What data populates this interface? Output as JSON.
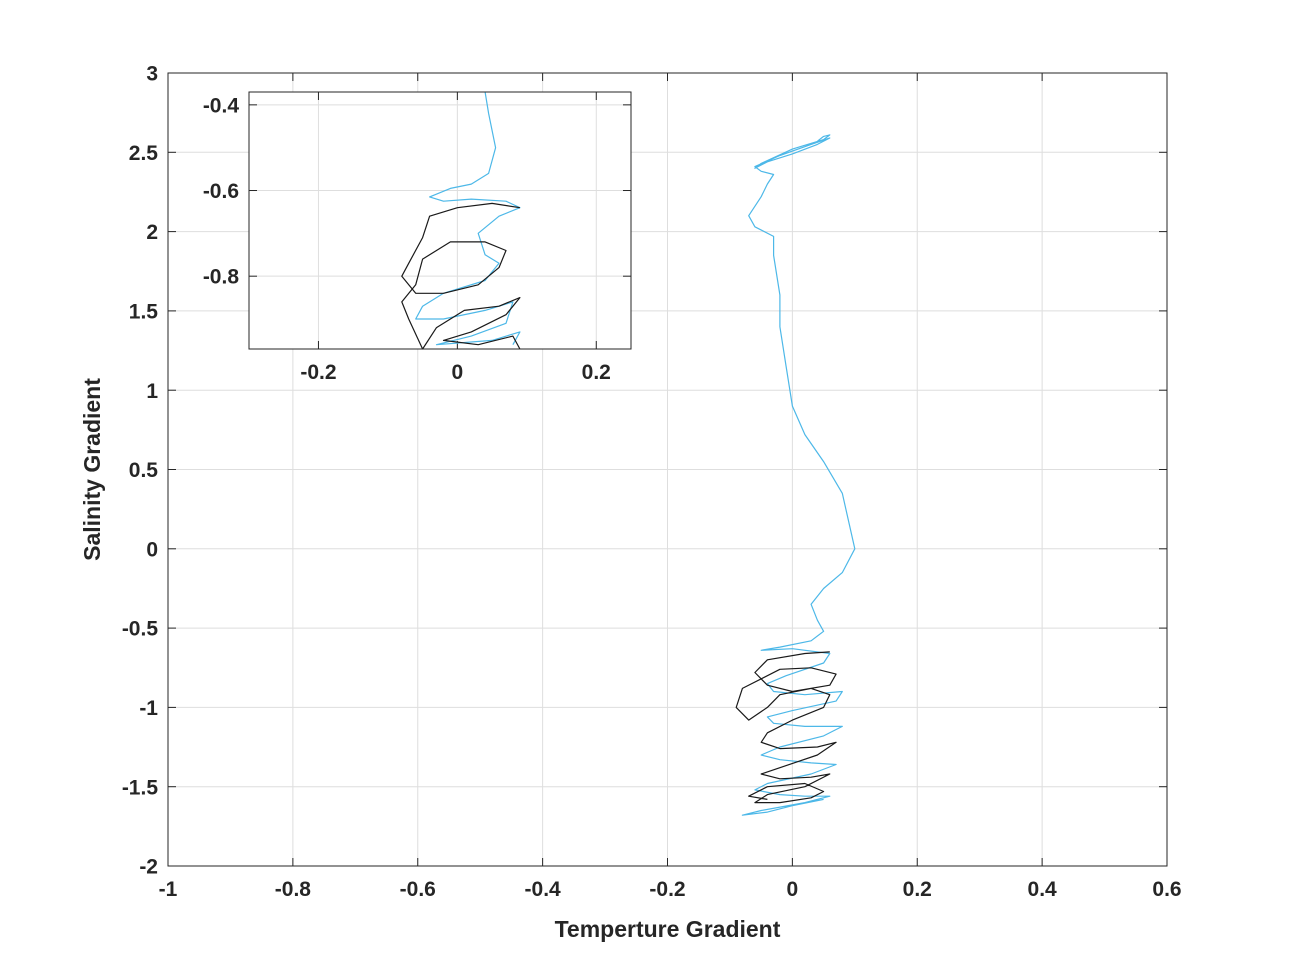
{
  "chart_data": [
    {
      "type": "line",
      "title": "",
      "xlabel": "Temperture Gradient",
      "ylabel": "Salinity Gradient",
      "xlim": [
        -1,
        0.6
      ],
      "ylim": [
        -2,
        3
      ],
      "grid": true,
      "x_ticks": [
        "-1",
        "-0.8",
        "-0.6",
        "-0.4",
        "-0.2",
        "0",
        "0.2",
        "0.4",
        "0.6"
      ],
      "y_ticks": [
        "-2",
        "-1.5",
        "-1",
        "-0.5",
        "0",
        "0.5",
        "1",
        "1.5",
        "2",
        "2.5",
        "3"
      ],
      "series": [
        {
          "color": "#4db8e8",
          "description": "trajectory descending from upper loop",
          "points": [
            [
              0.04,
              2.57
            ],
            [
              0.05,
              2.6
            ],
            [
              0.06,
              2.61
            ],
            [
              0.05,
              2.58
            ],
            [
              0.0,
              2.52
            ],
            [
              -0.05,
              2.43
            ],
            [
              -0.06,
              2.4
            ],
            [
              -0.04,
              2.44
            ],
            [
              0.0,
              2.49
            ],
            [
              0.04,
              2.55
            ],
            [
              0.06,
              2.59
            ],
            [
              0.03,
              2.55
            ],
            [
              -0.02,
              2.48
            ],
            [
              -0.06,
              2.41
            ],
            [
              -0.05,
              2.38
            ],
            [
              -0.03,
              2.36
            ],
            [
              -0.04,
              2.3
            ],
            [
              -0.05,
              2.22
            ],
            [
              -0.07,
              2.1
            ],
            [
              -0.06,
              2.03
            ],
            [
              -0.03,
              1.97
            ],
            [
              -0.03,
              1.85
            ],
            [
              -0.02,
              1.6
            ],
            [
              -0.02,
              1.4
            ],
            [
              -0.01,
              1.15
            ],
            [
              0.0,
              0.9
            ],
            [
              0.02,
              0.72
            ],
            [
              0.05,
              0.55
            ],
            [
              0.08,
              0.35
            ],
            [
              0.1,
              0.0
            ],
            [
              0.08,
              -0.15
            ],
            [
              0.05,
              -0.25
            ],
            [
              0.03,
              -0.35
            ],
            [
              0.04,
              -0.45
            ],
            [
              0.05,
              -0.52
            ],
            [
              0.03,
              -0.58
            ],
            [
              -0.02,
              -0.62
            ],
            [
              -0.05,
              -0.64
            ],
            [
              0.0,
              -0.63
            ],
            [
              0.06,
              -0.66
            ],
            [
              0.05,
              -0.72
            ],
            [
              -0.01,
              -0.8
            ],
            [
              -0.04,
              -0.85
            ],
            [
              -0.03,
              -0.9
            ],
            [
              0.02,
              -0.92
            ],
            [
              0.08,
              -0.9
            ],
            [
              0.07,
              -0.96
            ],
            [
              0.0,
              -1.02
            ],
            [
              -0.04,
              -1.06
            ],
            [
              -0.03,
              -1.1
            ],
            [
              0.02,
              -1.12
            ],
            [
              0.08,
              -1.12
            ],
            [
              0.05,
              -1.18
            ],
            [
              -0.02,
              -1.25
            ],
            [
              -0.05,
              -1.3
            ],
            [
              -0.02,
              -1.33
            ],
            [
              0.03,
              -1.35
            ],
            [
              0.07,
              -1.36
            ],
            [
              0.03,
              -1.42
            ],
            [
              -0.04,
              -1.48
            ],
            [
              -0.06,
              -1.52
            ],
            [
              -0.02,
              -1.55
            ],
            [
              0.02,
              -1.56
            ],
            [
              0.06,
              -1.56
            ],
            [
              0.02,
              -1.6
            ],
            [
              -0.05,
              -1.65
            ],
            [
              -0.08,
              -1.68
            ],
            [
              -0.04,
              -1.66
            ],
            [
              0.0,
              -1.62
            ],
            [
              0.05,
              -1.58
            ]
          ]
        },
        {
          "color": "#1a1a1a",
          "description": "black trajectory loops",
          "points": [
            [
              0.06,
              -0.65
            ],
            [
              0.02,
              -0.66
            ],
            [
              -0.04,
              -0.7
            ],
            [
              -0.06,
              -0.78
            ],
            [
              -0.04,
              -0.86
            ],
            [
              0.0,
              -0.9
            ],
            [
              0.06,
              -0.86
            ],
            [
              0.07,
              -0.79
            ],
            [
              0.03,
              -0.75
            ],
            [
              -0.02,
              -0.76
            ],
            [
              -0.08,
              -0.88
            ],
            [
              -0.09,
              -1.0
            ],
            [
              -0.07,
              -1.08
            ],
            [
              -0.04,
              -1.0
            ],
            [
              -0.02,
              -0.92
            ],
            [
              0.03,
              -0.88
            ],
            [
              0.06,
              -0.92
            ],
            [
              0.05,
              -1.0
            ],
            [
              0.0,
              -1.08
            ],
            [
              -0.04,
              -1.16
            ],
            [
              -0.05,
              -1.22
            ],
            [
              -0.02,
              -1.26
            ],
            [
              0.04,
              -1.25
            ],
            [
              0.07,
              -1.22
            ],
            [
              0.04,
              -1.3
            ],
            [
              -0.02,
              -1.38
            ],
            [
              -0.05,
              -1.42
            ],
            [
              -0.02,
              -1.45
            ],
            [
              0.03,
              -1.44
            ],
            [
              0.06,
              -1.42
            ],
            [
              0.02,
              -1.5
            ],
            [
              -0.04,
              -1.55
            ],
            [
              -0.06,
              -1.6
            ],
            [
              -0.02,
              -1.6
            ],
            [
              0.03,
              -1.57
            ],
            [
              0.05,
              -1.53
            ],
            [
              0.02,
              -1.48
            ],
            [
              -0.04,
              -1.5
            ],
            [
              -0.07,
              -1.56
            ],
            [
              -0.04,
              -1.58
            ]
          ]
        }
      ]
    },
    {
      "type": "line",
      "title": "",
      "description": "inset zoom",
      "xlabel": "",
      "ylabel": "",
      "xlim": [
        -0.3,
        0.25
      ],
      "ylim": [
        -0.97,
        -0.37
      ],
      "grid": true,
      "x_ticks": [
        "-0.2",
        "0",
        "0.2"
      ],
      "y_ticks": [
        "-0.8",
        "-0.6",
        "-0.4"
      ],
      "series": [
        {
          "color": "#4db8e8",
          "points": [
            [
              0.04,
              -0.37
            ],
            [
              0.045,
              -0.42
            ],
            [
              0.055,
              -0.5
            ],
            [
              0.045,
              -0.56
            ],
            [
              0.02,
              -0.585
            ],
            [
              -0.01,
              -0.595
            ],
            [
              -0.04,
              -0.615
            ],
            [
              -0.02,
              -0.625
            ],
            [
              0.02,
              -0.62
            ],
            [
              0.07,
              -0.625
            ],
            [
              0.09,
              -0.64
            ],
            [
              0.06,
              -0.66
            ],
            [
              0.03,
              -0.7
            ],
            [
              0.04,
              -0.75
            ],
            [
              0.06,
              -0.77
            ],
            [
              0.04,
              -0.81
            ],
            [
              -0.02,
              -0.84
            ],
            [
              -0.05,
              -0.87
            ],
            [
              -0.06,
              -0.9
            ],
            [
              -0.02,
              -0.9
            ],
            [
              0.04,
              -0.88
            ],
            [
              0.08,
              -0.86
            ],
            [
              0.07,
              -0.91
            ],
            [
              0.02,
              -0.94
            ],
            [
              -0.03,
              -0.96
            ],
            [
              0.05,
              -0.95
            ],
            [
              0.09,
              -0.93
            ],
            [
              0.08,
              -0.96
            ]
          ]
        },
        {
          "color": "#1a1a1a",
          "points": [
            [
              0.09,
              -0.64
            ],
            [
              0.05,
              -0.63
            ],
            [
              0.0,
              -0.64
            ],
            [
              -0.04,
              -0.66
            ],
            [
              -0.05,
              -0.71
            ],
            [
              -0.07,
              -0.77
            ],
            [
              -0.08,
              -0.8
            ],
            [
              -0.06,
              -0.84
            ],
            [
              -0.02,
              -0.84
            ],
            [
              0.03,
              -0.82
            ],
            [
              0.06,
              -0.78
            ],
            [
              0.07,
              -0.74
            ],
            [
              0.04,
              -0.72
            ],
            [
              -0.01,
              -0.72
            ],
            [
              -0.05,
              -0.76
            ],
            [
              -0.06,
              -0.82
            ],
            [
              -0.08,
              -0.86
            ],
            [
              -0.07,
              -0.9
            ],
            [
              -0.05,
              -0.97
            ],
            [
              -0.03,
              -0.92
            ],
            [
              0.01,
              -0.88
            ],
            [
              0.06,
              -0.87
            ],
            [
              0.09,
              -0.85
            ],
            [
              0.07,
              -0.89
            ],
            [
              0.02,
              -0.93
            ],
            [
              -0.02,
              -0.95
            ],
            [
              0.03,
              -0.96
            ],
            [
              0.08,
              -0.94
            ],
            [
              0.09,
              -0.97
            ]
          ]
        }
      ]
    }
  ]
}
